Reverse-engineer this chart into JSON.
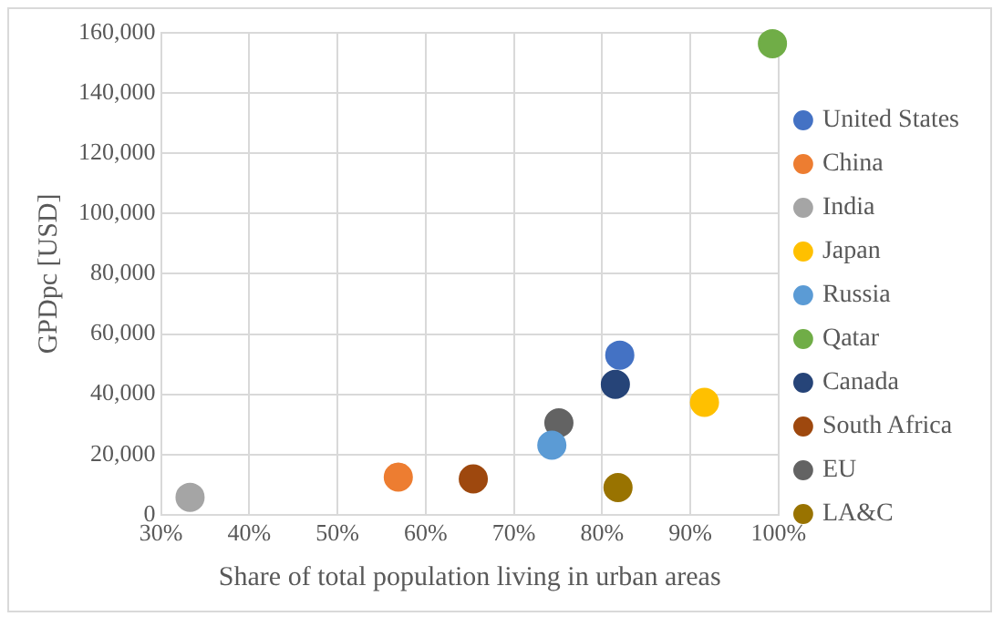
{
  "chart_data": {
    "type": "scatter",
    "xlabel": "Share of total population living in urban areas",
    "ylabel": "GPDpc [USD]",
    "xlim": [
      30,
      100
    ],
    "xticks": [
      {
        "value": 30,
        "label": "30%"
      },
      {
        "value": 40,
        "label": "40%"
      },
      {
        "value": 50,
        "label": "50%"
      },
      {
        "value": 60,
        "label": "60%"
      },
      {
        "value": 70,
        "label": "70%"
      },
      {
        "value": 80,
        "label": "80%"
      },
      {
        "value": 90,
        "label": "90%"
      },
      {
        "value": 100,
        "label": "100%"
      }
    ],
    "ylim": [
      0,
      160000
    ],
    "yticks": [
      {
        "value": 0,
        "label": "0"
      },
      {
        "value": 20000,
        "label": "20,000"
      },
      {
        "value": 40000,
        "label": "40,000"
      },
      {
        "value": 60000,
        "label": "60,000"
      },
      {
        "value": 80000,
        "label": "80,000"
      },
      {
        "value": 100000,
        "label": "100,000"
      },
      {
        "value": 120000,
        "label": "120,000"
      },
      {
        "value": 140000,
        "label": "140,000"
      },
      {
        "value": 160000,
        "label": "160,000"
      }
    ],
    "grid": true,
    "legend": "right",
    "marker": "circle",
    "series": [
      {
        "name": "United States",
        "color": "#4472c4",
        "x": [
          82.0
        ],
        "values": [
          53000
        ]
      },
      {
        "name": "China",
        "color": "#ed7d31",
        "x": [
          56.9
        ],
        "values": [
          12500
        ]
      },
      {
        "name": "India",
        "color": "#a5a5a5",
        "x": [
          33.3
        ],
        "values": [
          5800
        ]
      },
      {
        "name": "Japan",
        "color": "#ffc000",
        "x": [
          91.6
        ],
        "values": [
          37300
        ]
      },
      {
        "name": "Russia",
        "color": "#5b9bd5",
        "x": [
          74.3
        ],
        "values": [
          23100
        ]
      },
      {
        "name": "Qatar",
        "color": "#70ad47",
        "x": [
          99.3
        ],
        "values": [
          156400
        ]
      },
      {
        "name": "Canada",
        "color": "#264478",
        "x": [
          81.5
        ],
        "values": [
          43300
        ]
      },
      {
        "name": "South Africa",
        "color": "#9e480e",
        "x": [
          65.4
        ],
        "values": [
          11900
        ]
      },
      {
        "name": "EU",
        "color": "#636363",
        "x": [
          75.1
        ],
        "values": [
          30500
        ]
      },
      {
        "name": "LA&C",
        "color": "#997300",
        "x": [
          81.8
        ],
        "values": [
          9000
        ]
      }
    ]
  }
}
